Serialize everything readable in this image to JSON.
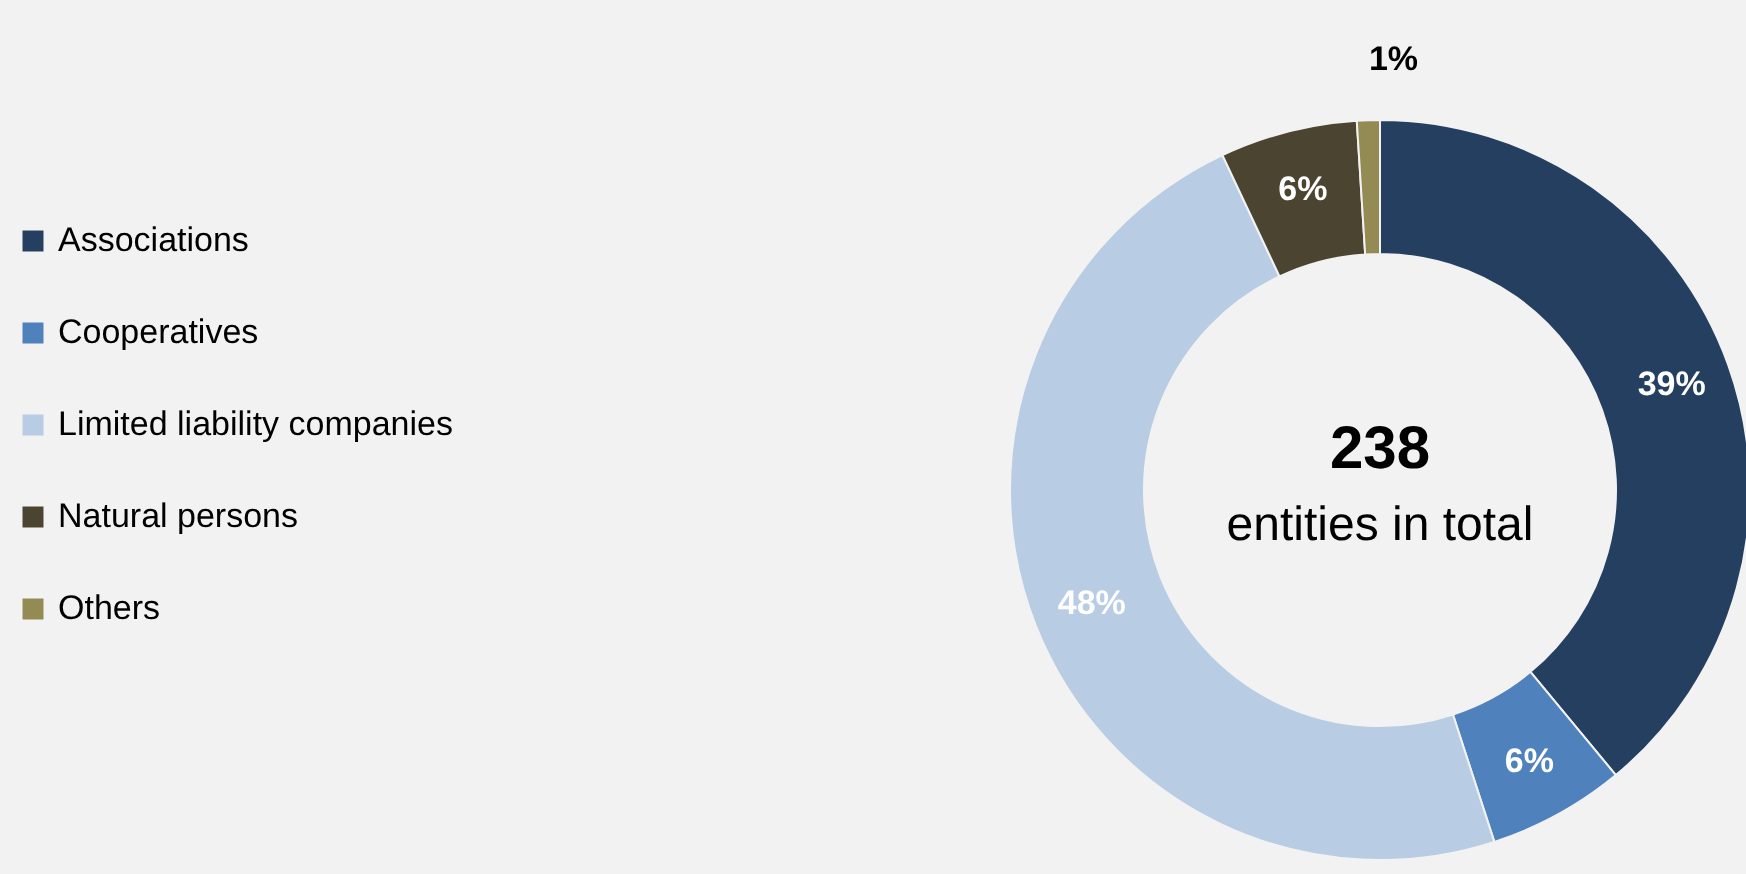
{
  "chart_data": {
    "type": "donut",
    "categories": [
      "Associations",
      "Cooperatives",
      "Limited liability companies",
      "Natural persons",
      "Others"
    ],
    "values": [
      39,
      6,
      48,
      6,
      1
    ],
    "colors": [
      "#243f60",
      "#4f81bd",
      "#b8cce4",
      "#4a4430",
      "#948a54"
    ],
    "value_labels": [
      "39%",
      "6%",
      "48%",
      "6%",
      "1%"
    ],
    "annotations": [
      "238",
      "entities in total"
    ],
    "legend": "left"
  }
}
